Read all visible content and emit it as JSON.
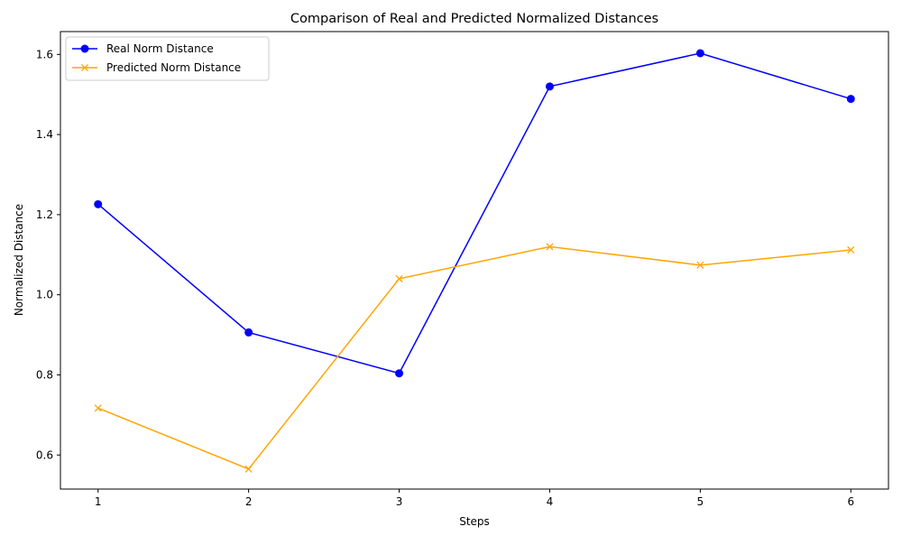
{
  "chart_data": {
    "type": "line",
    "title": "Comparison of Real and Predicted Normalized Distances",
    "xlabel": "Steps",
    "ylabel": "Normalized Distance",
    "x": [
      1,
      2,
      3,
      4,
      5,
      6
    ],
    "xlim": [
      0.75,
      6.25
    ],
    "ylim": [
      0.515,
      1.657
    ],
    "yticks": [
      0.6,
      0.8,
      1.0,
      1.2,
      1.4,
      1.6
    ],
    "ytick_labels": [
      "0.6",
      "0.8",
      "1.0",
      "1.2",
      "1.4",
      "1.6"
    ],
    "xticks": [
      1,
      2,
      3,
      4,
      5,
      6
    ],
    "xtick_labels": [
      "1",
      "2",
      "3",
      "4",
      "5",
      "6"
    ],
    "grid": false,
    "legend_position": "top-left",
    "series": [
      {
        "name": "Real Norm Distance",
        "color": "#0000ff",
        "marker": "circle",
        "values": [
          1.226,
          0.906,
          0.804,
          1.52,
          1.603,
          1.489
        ]
      },
      {
        "name": "Predicted Norm Distance",
        "color": "#ffa500",
        "marker": "x",
        "values": [
          0.717,
          0.565,
          1.04,
          1.12,
          1.074,
          1.112
        ]
      }
    ]
  }
}
